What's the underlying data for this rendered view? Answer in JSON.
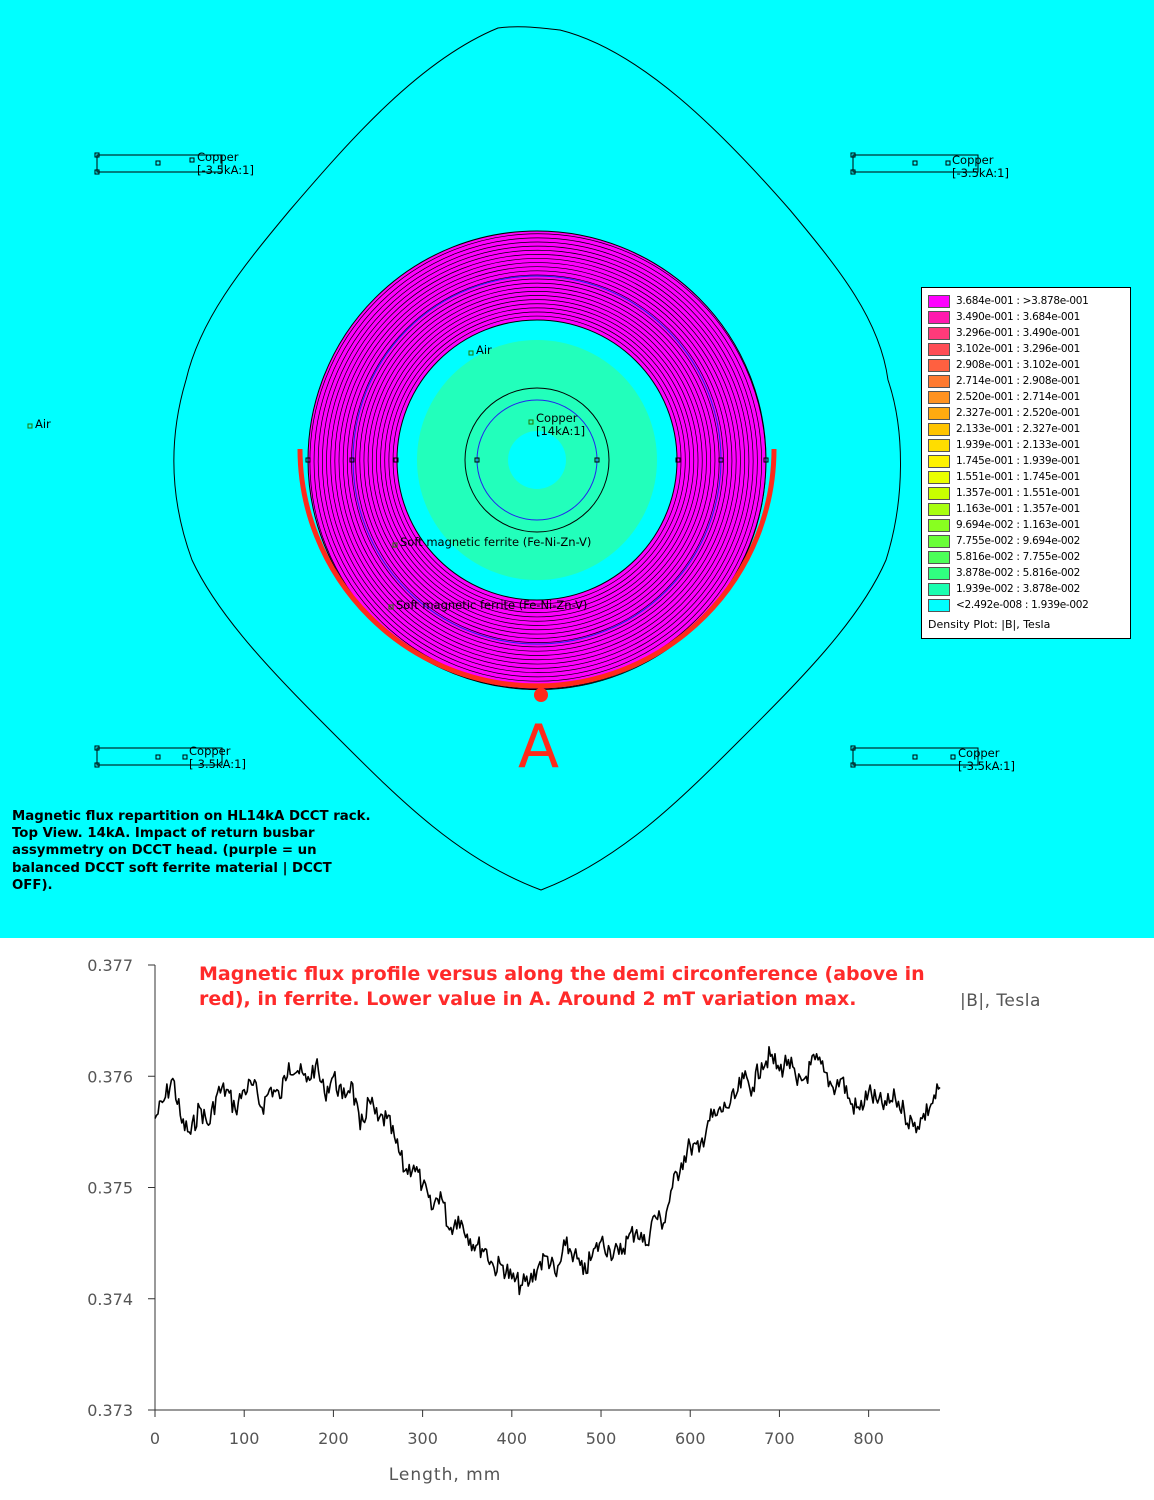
{
  "simulation": {
    "caption": "Magnetic flux repartition on HL14kA DCCT rack. Top View. 14kA. Impact of return busbar assymmetry on DCCT head. (purple = un balanced DCCT soft ferrite material | DCCT OFF).",
    "point_label": "A",
    "labels": {
      "air_left": "Air",
      "air_inner": "Air",
      "copper_center": "Copper",
      "copper_center_current": "[14kA:1]",
      "ferrite_inner": "Soft magnetic ferrite (Fe-Ni-Zn-V)",
      "ferrite_outer": "Soft magnetic ferrite (Fe-Ni-Zn-V)",
      "busbar_tl": "Copper",
      "busbar_tl_current": "[-3.5kA:1]",
      "busbar_tr": "Copper",
      "busbar_tr_current": "[-3.5kA:1]",
      "busbar_bl": "Copper",
      "busbar_bl_current": "[-3.5kA:1]",
      "busbar_br": "Copper",
      "busbar_br_current": "[-3.5kA:1]"
    },
    "colors": {
      "background": "#00ffff",
      "ferrite_ring": "#ff00ff",
      "inner_ferrite": "#22ffbb",
      "arc": "#ff2a1a"
    }
  },
  "legend": {
    "title": "Density Plot: |B|, Tesla",
    "entries": [
      {
        "label": "3.684e-001 : >3.878e-001",
        "color": "#ff00ff"
      },
      {
        "label": "3.490e-001 : 3.684e-001",
        "color": "#ff1aae"
      },
      {
        "label": "3.296e-001 : 3.490e-001",
        "color": "#ff3a7a"
      },
      {
        "label": "3.102e-001 : 3.296e-001",
        "color": "#ff4d55"
      },
      {
        "label": "2.908e-001 : 3.102e-001",
        "color": "#ff6040"
      },
      {
        "label": "2.714e-001 : 2.908e-001",
        "color": "#ff7a30"
      },
      {
        "label": "2.520e-001 : 2.714e-001",
        "color": "#ff9220"
      },
      {
        "label": "2.327e-001 : 2.520e-001",
        "color": "#ffaa10"
      },
      {
        "label": "2.133e-001 : 2.327e-001",
        "color": "#ffc400"
      },
      {
        "label": "1.939e-001 : 2.133e-001",
        "color": "#ffdd00"
      },
      {
        "label": "1.745e-001 : 1.939e-001",
        "color": "#fff200"
      },
      {
        "label": "1.551e-001 : 1.745e-001",
        "color": "#eaff00"
      },
      {
        "label": "1.357e-001 : 1.551e-001",
        "color": "#c8ff00"
      },
      {
        "label": "1.163e-001 : 1.357e-001",
        "color": "#a8ff10"
      },
      {
        "label": "9.694e-002 : 1.163e-001",
        "color": "#88ff20"
      },
      {
        "label": "7.755e-002 : 9.694e-002",
        "color": "#6aff38"
      },
      {
        "label": "5.816e-002 : 7.755e-002",
        "color": "#4cff58"
      },
      {
        "label": "3.878e-002 : 5.816e-002",
        "color": "#30ff80"
      },
      {
        "label": "1.939e-002 : 3.878e-002",
        "color": "#1affb0"
      },
      {
        "label": "<2.492e-008 : 1.939e-002",
        "color": "#00ffff"
      }
    ]
  },
  "chart_data": {
    "type": "line",
    "title": "Magnetic flux profile versus along the demi circonference (above in red), in ferrite. Lower value in A. Around 2 mT variation max.",
    "xlabel": "Length, mm",
    "ylabel": "|B|, Tesla",
    "xlim": [
      0,
      880
    ],
    "ylim": [
      0.373,
      0.377
    ],
    "x_ticks": [
      "0",
      "100",
      "200",
      "300",
      "400",
      "500",
      "600",
      "700",
      "800"
    ],
    "y_ticks": [
      "0.377",
      "0.376",
      "0.375",
      "0.374",
      "0.373"
    ],
    "grid": false,
    "series": [
      {
        "color": "#000000",
        "x": [
          0,
          10,
          20,
          30,
          40,
          50,
          60,
          70,
          80,
          90,
          100,
          110,
          120,
          130,
          140,
          150,
          160,
          170,
          180,
          190,
          200,
          210,
          220,
          230,
          240,
          250,
          260,
          270,
          280,
          290,
          300,
          310,
          320,
          330,
          340,
          350,
          360,
          370,
          380,
          390,
          400,
          410,
          420,
          430,
          440,
          450,
          460,
          470,
          480,
          490,
          500,
          510,
          520,
          530,
          540,
          550,
          560,
          570,
          580,
          590,
          600,
          610,
          620,
          630,
          640,
          650,
          660,
          670,
          680,
          690,
          700,
          710,
          720,
          730,
          740,
          750,
          760,
          770,
          780,
          790,
          800,
          810,
          820,
          830,
          840,
          850,
          860,
          870,
          880
        ],
        "y": [
          0.37562,
          0.37578,
          0.37598,
          0.37558,
          0.37548,
          0.37572,
          0.37556,
          0.37585,
          0.37588,
          0.3757,
          0.37588,
          0.37592,
          0.37572,
          0.3759,
          0.3758,
          0.37612,
          0.37605,
          0.37595,
          0.3761,
          0.37585,
          0.376,
          0.3758,
          0.37595,
          0.37552,
          0.37578,
          0.3756,
          0.37562,
          0.3754,
          0.37515,
          0.3752,
          0.37502,
          0.3748,
          0.37496,
          0.37462,
          0.37474,
          0.37458,
          0.37448,
          0.37445,
          0.37428,
          0.3743,
          0.37418,
          0.37412,
          0.37415,
          0.3743,
          0.37438,
          0.3742,
          0.37448,
          0.3744,
          0.37422,
          0.37438,
          0.37452,
          0.37444,
          0.3744,
          0.37454,
          0.37462,
          0.37448,
          0.37475,
          0.37468,
          0.375,
          0.37522,
          0.37538,
          0.37532,
          0.3756,
          0.37565,
          0.37572,
          0.3758,
          0.37598,
          0.3759,
          0.37612,
          0.37618,
          0.37605,
          0.37615,
          0.37592,
          0.376,
          0.37615,
          0.37604,
          0.3759,
          0.37598,
          0.37575,
          0.3757,
          0.37586,
          0.37576,
          0.37574,
          0.3758,
          0.37568,
          0.37555,
          0.37562,
          0.37575,
          0.3759
        ]
      }
    ]
  }
}
